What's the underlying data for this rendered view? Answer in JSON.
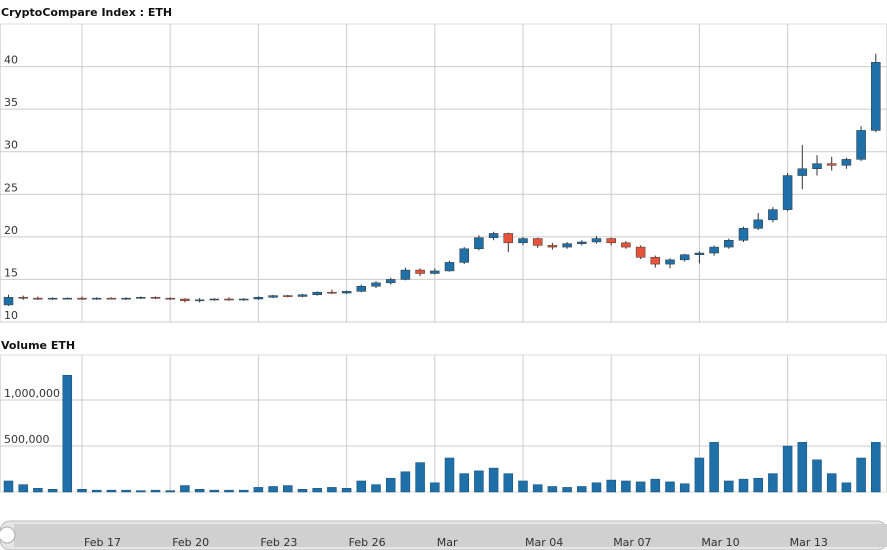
{
  "chart_data": [
    {
      "type": "candlestick",
      "title": "CryptoCompare Index : ETH",
      "categories": [
        null,
        null,
        null,
        null,
        null,
        "Feb 17",
        null,
        null,
        null,
        null,
        null,
        "Feb 20",
        null,
        null,
        null,
        null,
        null,
        "Feb 23",
        null,
        null,
        null,
        null,
        null,
        "Feb 26",
        null,
        null,
        null,
        null,
        null,
        "Mar",
        null,
        null,
        null,
        null,
        null,
        "Mar 04",
        null,
        null,
        null,
        null,
        null,
        "Mar 07",
        null,
        null,
        null,
        null,
        null,
        "Mar 10",
        null,
        null,
        null,
        null,
        null,
        "Mar 13",
        null,
        null,
        null,
        null,
        null,
        null
      ],
      "open": [
        12.0,
        12.9,
        12.8,
        12.7,
        12.8,
        12.8,
        12.7,
        12.8,
        12.7,
        12.8,
        12.9,
        12.8,
        12.7,
        12.5,
        12.6,
        12.7,
        12.6,
        12.7,
        12.9,
        13.1,
        13.0,
        13.2,
        13.5,
        13.4,
        13.6,
        14.2,
        14.6,
        15.0,
        16.1,
        15.7,
        16.0,
        17.0,
        18.6,
        19.9,
        20.4,
        19.3,
        19.8,
        19.0,
        18.8,
        19.2,
        19.4,
        19.8,
        19.3,
        18.8,
        17.6,
        16.8,
        17.3,
        17.9,
        18.1,
        18.8,
        19.6,
        21.0,
        22.0,
        23.2,
        27.2,
        28.0,
        28.6,
        28.4,
        29.1,
        32.5
      ],
      "high": [
        13.2,
        13.1,
        13.0,
        12.9,
        12.9,
        13.0,
        12.9,
        12.9,
        12.9,
        13.0,
        13.0,
        12.9,
        12.8,
        12.8,
        12.8,
        12.9,
        12.8,
        13.0,
        13.2,
        13.2,
        13.3,
        13.6,
        13.8,
        13.7,
        14.4,
        14.8,
        15.2,
        16.4,
        16.3,
        16.3,
        17.2,
        18.8,
        20.2,
        20.6,
        20.5,
        20.0,
        19.9,
        19.3,
        19.4,
        19.6,
        20.1,
        19.9,
        19.5,
        19.0,
        17.8,
        17.5,
        18.0,
        18.3,
        19.0,
        19.8,
        21.2,
        22.8,
        23.5,
        27.5,
        30.8,
        29.6,
        29.4,
        29.3,
        33.0,
        41.5
      ],
      "low": [
        11.9,
        12.6,
        12.6,
        12.6,
        12.7,
        12.6,
        12.6,
        12.7,
        12.6,
        12.7,
        12.7,
        12.6,
        12.3,
        12.3,
        12.5,
        12.5,
        12.5,
        12.6,
        12.8,
        12.9,
        12.9,
        13.1,
        13.3,
        13.3,
        13.5,
        14.0,
        14.4,
        14.9,
        15.4,
        15.6,
        15.9,
        16.8,
        18.4,
        19.6,
        18.2,
        19.0,
        18.7,
        18.5,
        18.6,
        19.0,
        19.2,
        19.0,
        18.6,
        17.4,
        16.4,
        16.3,
        17.1,
        16.9,
        17.8,
        18.6,
        19.4,
        20.8,
        21.7,
        23.0,
        25.6,
        27.2,
        27.8,
        28.0,
        28.9,
        32.3
      ],
      "close": [
        12.9,
        12.8,
        12.7,
        12.8,
        12.8,
        12.7,
        12.8,
        12.7,
        12.8,
        12.9,
        12.8,
        12.7,
        12.5,
        12.6,
        12.7,
        12.6,
        12.7,
        12.9,
        13.1,
        13.0,
        13.2,
        13.5,
        13.4,
        13.6,
        14.2,
        14.6,
        15.0,
        16.1,
        15.7,
        16.0,
        17.0,
        18.6,
        19.9,
        20.4,
        19.3,
        19.8,
        19.0,
        18.8,
        19.2,
        19.4,
        19.8,
        19.3,
        18.8,
        17.6,
        16.8,
        17.3,
        17.9,
        18.1,
        18.8,
        19.6,
        21.0,
        22.0,
        23.2,
        27.2,
        28.0,
        28.6,
        28.4,
        29.1,
        32.5,
        40.5
      ],
      "up_color": "#1f6fa8",
      "down_color": "#e5533b",
      "ylim": [
        10,
        45
      ],
      "yticks": [
        10,
        15,
        20,
        25,
        30,
        35,
        40
      ],
      "grid": true
    },
    {
      "type": "bar",
      "title": "Volume ETH",
      "color": "#1f6fa8",
      "values": [
        120000,
        80000,
        40000,
        30000,
        1270000,
        30000,
        20000,
        20000,
        20000,
        15000,
        20000,
        15000,
        70000,
        30000,
        20000,
        20000,
        20000,
        50000,
        60000,
        70000,
        30000,
        40000,
        50000,
        40000,
        120000,
        80000,
        150000,
        220000,
        320000,
        100000,
        370000,
        200000,
        230000,
        260000,
        200000,
        120000,
        80000,
        60000,
        50000,
        60000,
        100000,
        130000,
        120000,
        110000,
        140000,
        110000,
        90000,
        370000,
        540000,
        120000,
        140000,
        150000,
        200000,
        500000,
        540000,
        350000,
        200000,
        100000,
        370000,
        540000
      ],
      "ylim": [
        0,
        1490000
      ],
      "yticks": [
        {
          "value": 500000,
          "label": "500,000"
        },
        {
          "value": 1000000,
          "label": "1,000,000"
        }
      ],
      "grid": true
    }
  ]
}
